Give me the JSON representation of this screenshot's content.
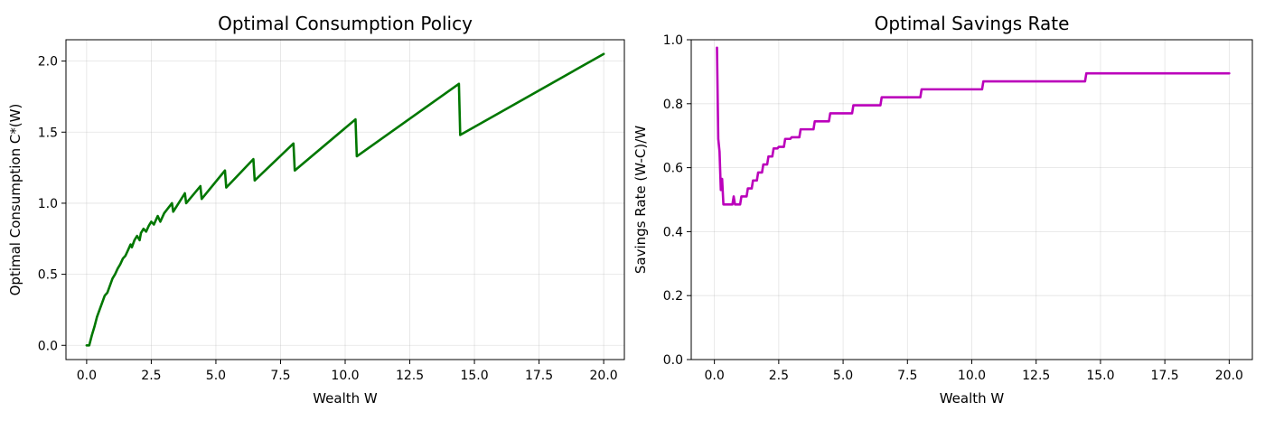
{
  "chart_data": [
    {
      "type": "line",
      "title": "Optimal Consumption Policy",
      "xlabel": "Wealth W",
      "ylabel": "Optimal Consumption C*(W)",
      "xlim": [
        -0.8,
        20.8
      ],
      "ylim": [
        -0.1,
        2.15
      ],
      "xticks": [
        0.0,
        2.5,
        5.0,
        7.5,
        10.0,
        12.5,
        15.0,
        17.5,
        20.0
      ],
      "xtick_labels": [
        "0.0",
        "2.5",
        "5.0",
        "7.5",
        "10.0",
        "12.5",
        "15.0",
        "17.5",
        "20.0"
      ],
      "yticks": [
        0.0,
        0.5,
        1.0,
        1.5,
        2.0
      ],
      "ytick_labels": [
        "0.0",
        "0.5",
        "1.0",
        "1.5",
        "2.0"
      ],
      "grid": true,
      "color": "#007700",
      "series": [
        {
          "x": [
            0.0,
            0.1,
            0.2,
            0.3,
            0.4,
            0.5,
            0.6,
            0.7,
            0.8,
            0.9,
            1.0,
            1.1,
            1.2,
            1.3,
            1.4,
            1.5,
            1.6,
            1.7,
            1.75,
            1.85,
            1.95,
            2.05,
            2.1,
            2.2,
            2.3,
            2.4,
            2.5,
            2.6,
            2.75,
            2.85,
            3.0,
            3.3,
            3.35,
            3.8,
            3.85,
            4.4,
            4.45,
            5.35,
            5.4,
            6.45,
            6.5,
            8.0,
            8.05,
            10.4,
            10.45,
            14.4,
            14.45,
            20.0
          ],
          "y": [
            0.0,
            0.0,
            0.07,
            0.13,
            0.2,
            0.25,
            0.3,
            0.35,
            0.37,
            0.42,
            0.47,
            0.5,
            0.54,
            0.57,
            0.61,
            0.63,
            0.67,
            0.71,
            0.69,
            0.74,
            0.77,
            0.74,
            0.79,
            0.82,
            0.8,
            0.84,
            0.87,
            0.85,
            0.91,
            0.87,
            0.93,
            1.0,
            0.94,
            1.07,
            1.0,
            1.12,
            1.03,
            1.23,
            1.11,
            1.31,
            1.16,
            1.42,
            1.23,
            1.59,
            1.33,
            1.84,
            1.48,
            2.05
          ]
        }
      ]
    },
    {
      "type": "line",
      "title": "Optimal Savings Rate",
      "xlabel": "Wealth W",
      "ylabel": "Savings Rate (W-C)/W",
      "xlim": [
        -0.9,
        20.9
      ],
      "ylim": [
        0.0,
        1.0
      ],
      "xticks": [
        0.0,
        2.5,
        5.0,
        7.5,
        10.0,
        12.5,
        15.0,
        17.5,
        20.0
      ],
      "xtick_labels": [
        "0.0",
        "2.5",
        "5.0",
        "7.5",
        "10.0",
        "12.5",
        "15.0",
        "17.5",
        "20.0"
      ],
      "yticks": [
        0.0,
        0.2,
        0.4,
        0.6,
        0.8,
        1.0
      ],
      "ytick_labels": [
        "0.0",
        "0.2",
        "0.4",
        "0.6",
        "0.8",
        "1.0"
      ],
      "grid": true,
      "color": "#bb00bb",
      "series": [
        {
          "x": [
            0.1,
            0.15,
            0.2,
            0.25,
            0.3,
            0.35,
            0.4,
            0.45,
            0.7,
            0.75,
            0.8,
            1.0,
            1.05,
            1.25,
            1.3,
            1.45,
            1.5,
            1.65,
            1.7,
            1.85,
            1.9,
            2.05,
            2.1,
            2.25,
            2.3,
            2.45,
            2.5,
            2.7,
            2.75,
            2.95,
            3.0,
            3.3,
            3.35,
            3.85,
            3.9,
            4.45,
            4.5,
            5.35,
            5.4,
            6.45,
            6.5,
            8.0,
            8.05,
            10.4,
            10.45,
            14.4,
            14.45,
            20.0
          ],
          "y": [
            0.975,
            0.69,
            0.65,
            0.53,
            0.565,
            0.485,
            0.485,
            0.485,
            0.485,
            0.51,
            0.485,
            0.485,
            0.51,
            0.51,
            0.535,
            0.535,
            0.56,
            0.56,
            0.585,
            0.585,
            0.61,
            0.61,
            0.635,
            0.635,
            0.66,
            0.66,
            0.665,
            0.665,
            0.69,
            0.69,
            0.695,
            0.695,
            0.72,
            0.72,
            0.745,
            0.745,
            0.77,
            0.77,
            0.795,
            0.795,
            0.82,
            0.82,
            0.845,
            0.845,
            0.87,
            0.87,
            0.895,
            0.895
          ]
        }
      ]
    }
  ]
}
